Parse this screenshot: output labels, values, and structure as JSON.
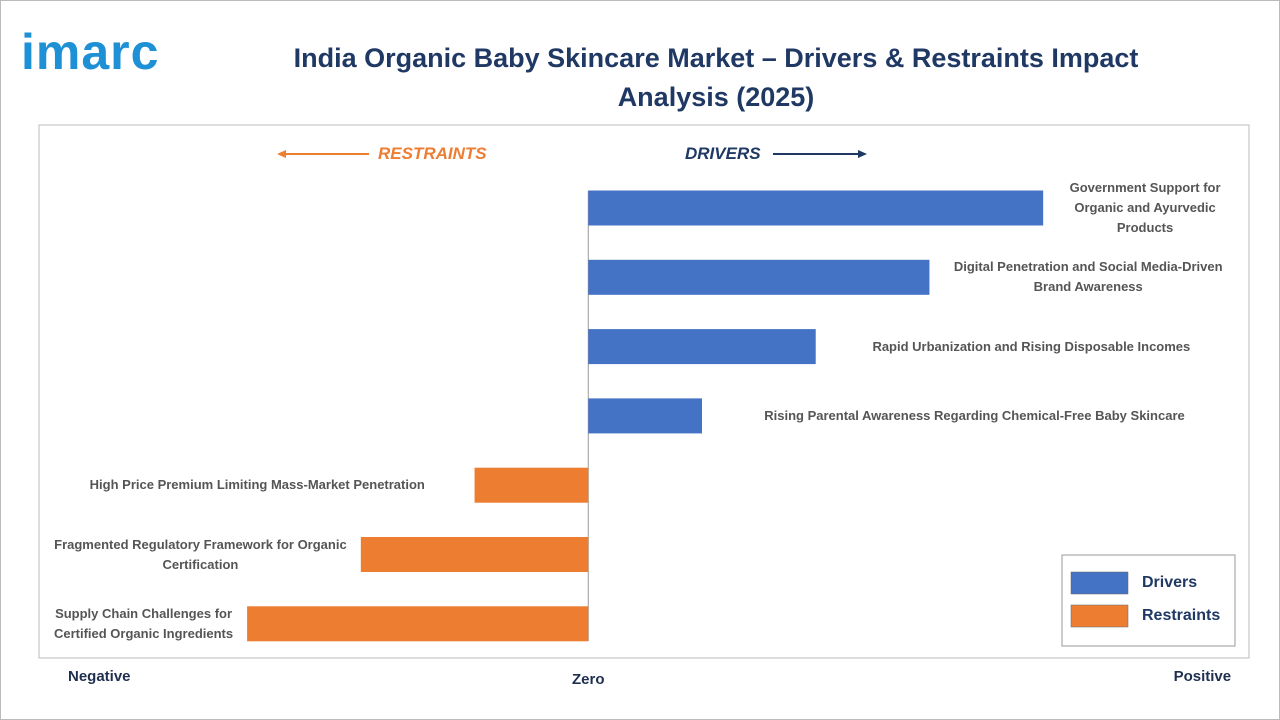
{
  "logo": "imarc",
  "chart_data": {
    "type": "diverging-bar",
    "title": "India Organic Baby Skincare Market – Drivers & Restraints Impact Analysis (2025)",
    "annotations": [
      "RESTRAINTS",
      "DRIVERS"
    ],
    "categories": [
      "Government Support for Organic and Ayurvedic Products",
      "Digital Penetration and Social Media-Driven Brand Awareness",
      "Rapid Urbanization and Rising Disposable Incomes",
      "Rising Parental Awareness Regarding Chemical-Free Baby Skincare",
      "High Price Premium Limiting Mass-Market Penetration",
      "Fragmented Regulatory Framework for Organic Certification",
      "Supply Chain Challenges for Certified Organic Ingredients"
    ],
    "series": [
      {
        "name": "Drivers",
        "color": "#4472c4",
        "values": [
          4,
          3,
          2,
          1,
          null,
          null,
          null
        ]
      },
      {
        "name": "Restraints",
        "color": "#ed7d31",
        "values": [
          null,
          null,
          null,
          null,
          -1,
          -2,
          -3
        ]
      }
    ],
    "xlim": [
      -4.83,
      5.81
    ],
    "xticks": [
      {
        "value": -4.3,
        "label": "Negative"
      },
      {
        "value": 0,
        "label": "Zero"
      },
      {
        "value": 5.4,
        "label": "Positive"
      }
    ],
    "legend": "bottom-right"
  }
}
